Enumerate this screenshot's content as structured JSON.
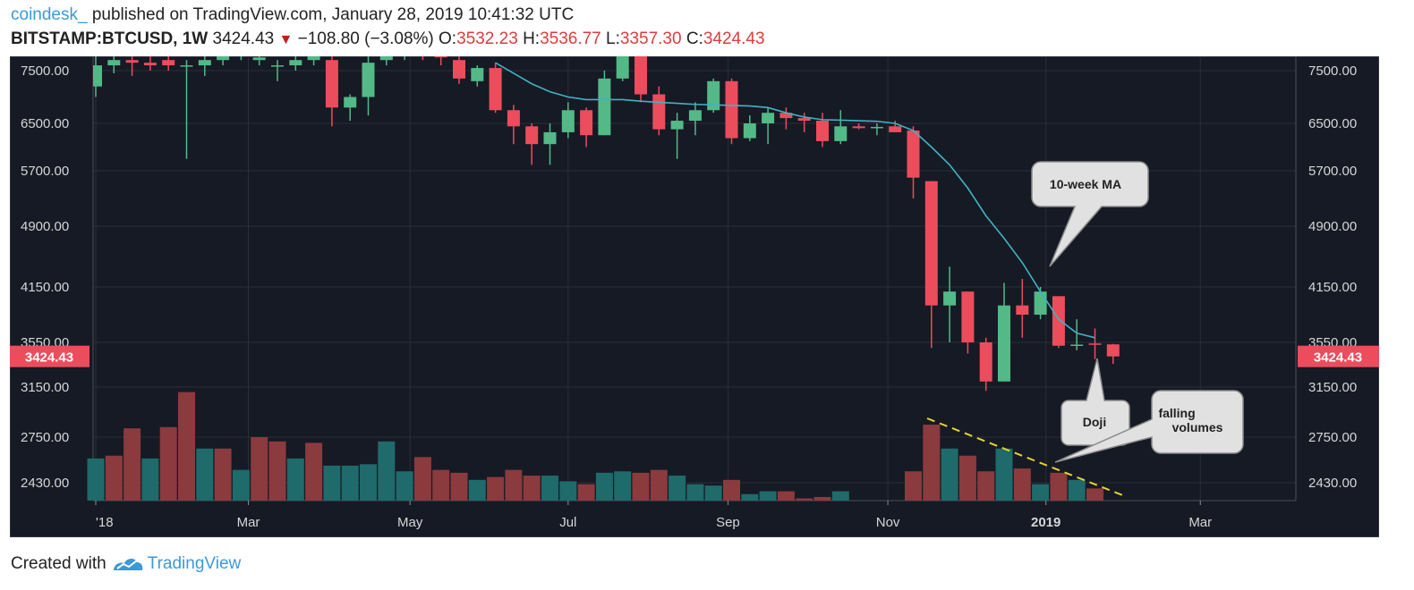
{
  "header": {
    "publisher": "coindesk_",
    "published_text": "published on TradingView.com, January 28, 2019 10:41:32 UTC",
    "symbol": "BITSTAMP:BTCUSD, 1W",
    "last": "3424.43",
    "change": "−108.80 (−3.08%)",
    "o_label": "O:",
    "o_value": "3532.23",
    "h_label": "H:",
    "h_value": "3536.77",
    "l_label": "L:",
    "l_value": "3357.30",
    "c_label": "C:",
    "c_value": "3424.43"
  },
  "footer": {
    "created": "Created with",
    "brand": "TradingView"
  },
  "colors": {
    "up": "#53b987",
    "down": "#eb4d5c",
    "vol_up": "#1f6a6a",
    "vol_down": "#8b3a3e",
    "ma": "#3fb3c3",
    "bg": "#161a25",
    "badge": "#eb4d5c"
  },
  "chart_data": {
    "type": "candlestick",
    "interval": "1W",
    "y_ticks": [
      7500,
      6500,
      5700,
      4900,
      4150,
      3550,
      3150,
      2750,
      2430
    ],
    "y_tick_labels": [
      "7500.00",
      "6500.00",
      "5700.00",
      "4900.00",
      "4150.00",
      "3550.00",
      "3150.00",
      "2750.00",
      "2430.00"
    ],
    "x_ticks": [
      {
        "label": "'18",
        "x": 0
      },
      {
        "label": "Mar",
        "x": 8.4
      },
      {
        "label": "May",
        "x": 17.3
      },
      {
        "label": "Jul",
        "x": 26
      },
      {
        "label": "Sep",
        "x": 34.8
      },
      {
        "label": "Nov",
        "x": 43.6
      },
      {
        "label": "2019",
        "x": 52.3
      },
      {
        "label": "Mar",
        "x": 60.8
      }
    ],
    "last_price_label": "3424.43",
    "last_price": 3424.43,
    "candles": [
      {
        "o": 7200,
        "h": 7850,
        "l": 7000,
        "c": 7600
      },
      {
        "o": 7600,
        "h": 7800,
        "l": 7450,
        "c": 7700
      },
      {
        "o": 7700,
        "h": 7900,
        "l": 7400,
        "c": 7650
      },
      {
        "o": 7650,
        "h": 7800,
        "l": 7500,
        "c": 7600
      },
      {
        "o": 7700,
        "h": 7900,
        "l": 7500,
        "c": 7600
      },
      {
        "o": 7600,
        "h": 7700,
        "l": 5900,
        "c": 7600
      },
      {
        "o": 7600,
        "h": 7800,
        "l": 7400,
        "c": 7700
      },
      {
        "o": 7700,
        "h": 7900,
        "l": 7600,
        "c": 7800
      },
      {
        "o": 7800,
        "h": 7950,
        "l": 7700,
        "c": 7850
      },
      {
        "o": 7700,
        "h": 7900,
        "l": 7600,
        "c": 7750
      },
      {
        "o": 7600,
        "h": 7700,
        "l": 7300,
        "c": 7600
      },
      {
        "o": 7600,
        "h": 7800,
        "l": 7500,
        "c": 7700
      },
      {
        "o": 7700,
        "h": 7900,
        "l": 7600,
        "c": 7800
      },
      {
        "o": 7700,
        "h": 7800,
        "l": 6450,
        "c": 6800
      },
      {
        "o": 6800,
        "h": 7050,
        "l": 6550,
        "c": 7000
      },
      {
        "o": 7000,
        "h": 7800,
        "l": 6650,
        "c": 7650
      },
      {
        "o": 7700,
        "h": 7900,
        "l": 7600,
        "c": 7800
      },
      {
        "o": 7800,
        "h": 7950,
        "l": 7700,
        "c": 7850
      },
      {
        "o": 7850,
        "h": 7950,
        "l": 7700,
        "c": 7800
      },
      {
        "o": 7800,
        "h": 7900,
        "l": 7600,
        "c": 7750
      },
      {
        "o": 7700,
        "h": 7850,
        "l": 7250,
        "c": 7350
      },
      {
        "o": 7300,
        "h": 7600,
        "l": 7200,
        "c": 7550
      },
      {
        "o": 7550,
        "h": 7650,
        "l": 6700,
        "c": 6750
      },
      {
        "o": 6750,
        "h": 6850,
        "l": 6150,
        "c": 6450
      },
      {
        "o": 6450,
        "h": 6500,
        "l": 5800,
        "c": 6150
      },
      {
        "o": 6150,
        "h": 6500,
        "l": 5800,
        "c": 6350
      },
      {
        "o": 6350,
        "h": 6900,
        "l": 6250,
        "c": 6750
      },
      {
        "o": 6750,
        "h": 6800,
        "l": 6100,
        "c": 6300
      },
      {
        "o": 6300,
        "h": 7500,
        "l": 6300,
        "c": 7350
      },
      {
        "o": 7350,
        "h": 8300,
        "l": 7300,
        "c": 8200
      },
      {
        "o": 8200,
        "h": 8450,
        "l": 6900,
        "c": 7050
      },
      {
        "o": 7050,
        "h": 7200,
        "l": 6300,
        "c": 6400
      },
      {
        "o": 6400,
        "h": 6700,
        "l": 5900,
        "c": 6550
      },
      {
        "o": 6550,
        "h": 6900,
        "l": 6300,
        "c": 6750
      },
      {
        "o": 6750,
        "h": 7350,
        "l": 6700,
        "c": 7300
      },
      {
        "o": 7300,
        "h": 7350,
        "l": 6150,
        "c": 6250
      },
      {
        "o": 6250,
        "h": 6650,
        "l": 6200,
        "c": 6500
      },
      {
        "o": 6500,
        "h": 6800,
        "l": 6150,
        "c": 6700
      },
      {
        "o": 6700,
        "h": 6800,
        "l": 6400,
        "c": 6600
      },
      {
        "o": 6600,
        "h": 6700,
        "l": 6350,
        "c": 6550
      },
      {
        "o": 6550,
        "h": 6700,
        "l": 6100,
        "c": 6200
      },
      {
        "o": 6200,
        "h": 6750,
        "l": 6150,
        "c": 6450
      },
      {
        "o": 6450,
        "h": 6500,
        "l": 6400,
        "c": 6420
      },
      {
        "o": 6420,
        "h": 6500,
        "l": 6300,
        "c": 6440
      },
      {
        "o": 6450,
        "h": 6550,
        "l": 6350,
        "c": 6350
      },
      {
        "o": 6380,
        "h": 6450,
        "l": 5300,
        "c": 5600
      },
      {
        "o": 5550,
        "h": 5550,
        "l": 3500,
        "c": 3950
      },
      {
        "o": 3950,
        "h": 4400,
        "l": 3550,
        "c": 4100
      },
      {
        "o": 4100,
        "h": 4100,
        "l": 3450,
        "c": 3550
      },
      {
        "o": 3550,
        "h": 3600,
        "l": 3120,
        "c": 3200
      },
      {
        "o": 3200,
        "h": 4200,
        "l": 3200,
        "c": 3950
      },
      {
        "o": 3950,
        "h": 4250,
        "l": 3600,
        "c": 3850
      },
      {
        "o": 3850,
        "h": 4150,
        "l": 3800,
        "c": 4100
      },
      {
        "o": 4050,
        "h": 4050,
        "l": 3500,
        "c": 3520
      },
      {
        "o": 3520,
        "h": 3800,
        "l": 3480,
        "c": 3530
      },
      {
        "o": 3540,
        "h": 3700,
        "l": 3400,
        "c": 3530
      },
      {
        "o": 3532.23,
        "h": 3536.77,
        "l": 3357.3,
        "c": 3424.43
      }
    ],
    "volumes": [
      {
        "v": 2600,
        "up": true
      },
      {
        "v": 2620,
        "up": false
      },
      {
        "v": 2820,
        "up": false
      },
      {
        "v": 2600,
        "up": true
      },
      {
        "v": 2830,
        "up": false
      },
      {
        "v": 3110,
        "up": false
      },
      {
        "v": 2670,
        "up": true
      },
      {
        "v": 2670,
        "up": false
      },
      {
        "v": 2520,
        "up": true
      },
      {
        "v": 2750,
        "up": false
      },
      {
        "v": 2720,
        "up": false
      },
      {
        "v": 2600,
        "up": true
      },
      {
        "v": 2710,
        "up": false
      },
      {
        "v": 2550,
        "up": true
      },
      {
        "v": 2550,
        "up": true
      },
      {
        "v": 2560,
        "up": true
      },
      {
        "v": 2720,
        "up": true
      },
      {
        "v": 2510,
        "up": true
      },
      {
        "v": 2610,
        "up": false
      },
      {
        "v": 2520,
        "up": false
      },
      {
        "v": 2500,
        "up": false
      },
      {
        "v": 2450,
        "up": true
      },
      {
        "v": 2470,
        "up": false
      },
      {
        "v": 2520,
        "up": false
      },
      {
        "v": 2480,
        "up": false
      },
      {
        "v": 2480,
        "up": true
      },
      {
        "v": 2440,
        "up": true
      },
      {
        "v": 2420,
        "up": false
      },
      {
        "v": 2500,
        "up": true
      },
      {
        "v": 2510,
        "up": true
      },
      {
        "v": 2500,
        "up": false
      },
      {
        "v": 2520,
        "up": false
      },
      {
        "v": 2480,
        "up": true
      },
      {
        "v": 2420,
        "up": true
      },
      {
        "v": 2410,
        "up": true
      },
      {
        "v": 2450,
        "up": false
      },
      {
        "v": 2350,
        "up": true
      },
      {
        "v": 2370,
        "up": true
      },
      {
        "v": 2370,
        "up": false
      },
      {
        "v": 2320,
        "up": false
      },
      {
        "v": 2330,
        "up": false
      },
      {
        "v": 2370,
        "up": true
      },
      {
        "v": 2280,
        "up": false
      },
      {
        "v": 2300,
        "up": true
      },
      {
        "v": 2300,
        "up": false
      },
      {
        "v": 2510,
        "up": false
      },
      {
        "v": 2850,
        "up": false
      },
      {
        "v": 2670,
        "up": true
      },
      {
        "v": 2620,
        "up": false
      },
      {
        "v": 2510,
        "up": false
      },
      {
        "v": 2670,
        "up": true
      },
      {
        "v": 2530,
        "up": false
      },
      {
        "v": 2420,
        "up": true
      },
      {
        "v": 2500,
        "up": false
      },
      {
        "v": 2450,
        "up": true
      },
      {
        "v": 2390,
        "up": false
      },
      {
        "v": 2250,
        "up": false
      }
    ],
    "ma_10w": [
      {
        "i": 22,
        "v": 7650
      },
      {
        "i": 23,
        "v": 7450
      },
      {
        "i": 24,
        "v": 7250
      },
      {
        "i": 25,
        "v": 7100
      },
      {
        "i": 26,
        "v": 7000
      },
      {
        "i": 27,
        "v": 6950
      },
      {
        "i": 28,
        "v": 6950
      },
      {
        "i": 29,
        "v": 6950
      },
      {
        "i": 30,
        "v": 6920
      },
      {
        "i": 31,
        "v": 6900
      },
      {
        "i": 32,
        "v": 6880
      },
      {
        "i": 33,
        "v": 6860
      },
      {
        "i": 34,
        "v": 6850
      },
      {
        "i": 35,
        "v": 6840
      },
      {
        "i": 36,
        "v": 6830
      },
      {
        "i": 37,
        "v": 6800
      },
      {
        "i": 38,
        "v": 6700
      },
      {
        "i": 39,
        "v": 6620
      },
      {
        "i": 40,
        "v": 6570
      },
      {
        "i": 41,
        "v": 6560
      },
      {
        "i": 42,
        "v": 6550
      },
      {
        "i": 43,
        "v": 6540
      },
      {
        "i": 44,
        "v": 6500
      },
      {
        "i": 45,
        "v": 6380
      },
      {
        "i": 46,
        "v": 6100
      },
      {
        "i": 47,
        "v": 5800
      },
      {
        "i": 48,
        "v": 5450
      },
      {
        "i": 49,
        "v": 5050
      },
      {
        "i": 50,
        "v": 4750
      },
      {
        "i": 51,
        "v": 4450
      },
      {
        "i": 52,
        "v": 4100
      },
      {
        "i": 53,
        "v": 3800
      },
      {
        "i": 54,
        "v": 3650
      },
      {
        "i": 55,
        "v": 3600
      }
    ],
    "annotations": [
      {
        "label": "10-week MA"
      },
      {
        "label": "Doji"
      },
      {
        "label": "falling volumes"
      }
    ]
  }
}
